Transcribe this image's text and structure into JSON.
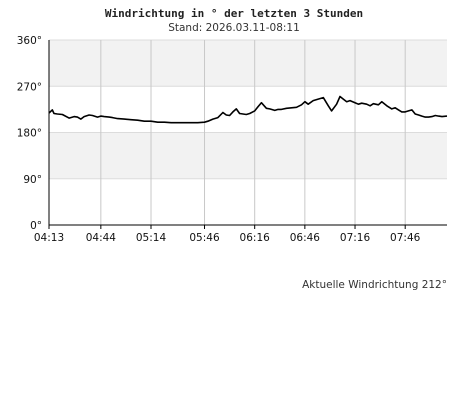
{
  "chart_data": {
    "type": "line",
    "title": "Windrichtung in ° der letzten 3 Stunden",
    "subtitle": "Stand: 2026.03.11-08:11",
    "y_ticks": [
      "0°",
      "90°",
      "180°",
      "270°",
      "360°"
    ],
    "ylim": [
      0,
      360
    ],
    "x_ticks": [
      "04:13",
      "04:44",
      "05:14",
      "05:46",
      "06:16",
      "06:46",
      "07:16",
      "07:46"
    ],
    "xlim": [
      "04:13",
      "08:11"
    ],
    "grid": true,
    "alternating_bands": true,
    "band_color": "#f2f2f2",
    "line_color": "#000000",
    "footer": "Aktuelle Windrichtung 212°",
    "series": [
      {
        "x": [
          "04:13",
          "04:15",
          "04:16",
          "04:18",
          "04:21",
          "04:25",
          "04:28",
          "04:30",
          "04:32",
          "04:34",
          "04:37",
          "04:39",
          "04:42",
          "04:44",
          "04:46",
          "04:49",
          "04:51",
          "04:54",
          "04:58",
          "05:02",
          "05:06",
          "05:10",
          "05:14",
          "05:18",
          "05:22",
          "05:26",
          "05:30",
          "05:34",
          "05:38",
          "05:42",
          "05:46",
          "05:48",
          "05:51",
          "05:54",
          "05:57",
          "05:59",
          "06:01",
          "06:03",
          "06:05",
          "06:07",
          "06:09",
          "06:11",
          "06:13",
          "06:16",
          "06:18",
          "06:20",
          "06:23",
          "06:25",
          "06:28",
          "06:30",
          "06:32",
          "06:35",
          "06:38",
          "06:41",
          "06:44",
          "06:46",
          "06:48",
          "06:51",
          "06:54",
          "06:57",
          "07:00",
          "07:02",
          "07:05",
          "07:07",
          "07:09",
          "07:11",
          "07:13",
          "07:16",
          "07:18",
          "07:20",
          "07:23",
          "07:25",
          "07:27",
          "07:30",
          "07:32",
          "07:35",
          "07:38",
          "07:40",
          "07:42",
          "07:44",
          "07:46",
          "07:48",
          "07:50",
          "07:52",
          "07:54",
          "07:56",
          "07:58",
          "08:00",
          "08:02",
          "08:04",
          "08:06",
          "08:08",
          "08:11"
        ],
        "y": [
          218,
          224,
          217,
          216,
          215,
          208,
          211,
          210,
          206,
          211,
          214,
          213,
          210,
          212,
          211,
          210,
          209,
          207,
          206,
          205,
          204,
          202,
          202,
          200,
          200,
          199,
          199,
          199,
          199,
          199,
          200,
          202,
          206,
          209,
          219,
          214,
          213,
          220,
          226,
          217,
          216,
          215,
          217,
          222,
          230,
          238,
          227,
          226,
          223,
          225,
          225,
          227,
          228,
          229,
          234,
          240,
          235,
          242,
          245,
          248,
          232,
          222,
          235,
          250,
          245,
          240,
          242,
          238,
          235,
          237,
          235,
          232,
          236,
          234,
          240,
          232,
          226,
          228,
          224,
          220,
          220,
          222,
          224,
          216,
          214,
          212,
          210,
          210,
          211,
          213,
          212,
          211,
          212
        ]
      }
    ]
  }
}
